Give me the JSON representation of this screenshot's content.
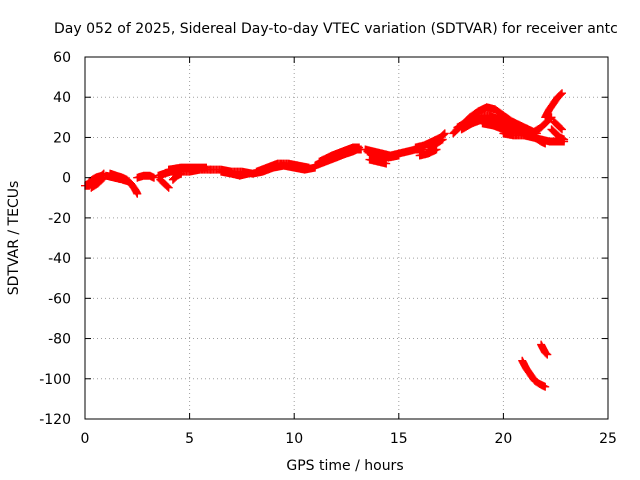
{
  "chart_data": {
    "type": "scatter",
    "title": "Day 052 of 2025, Sidereal Day-to-day VTEC variation (SDTVAR) for receiver antc",
    "xlabel": "GPS time / hours",
    "ylabel": "SDTVAR / TECUs",
    "xlim": [
      0,
      25
    ],
    "ylim": [
      -120,
      60
    ],
    "xticks": [
      0,
      5,
      10,
      15,
      20,
      25
    ],
    "yticks": [
      60,
      40,
      20,
      0,
      -20,
      -40,
      -60,
      -80,
      -100,
      -120
    ],
    "grid": true,
    "marker": "+",
    "series": [
      {
        "name": "SDTVAR",
        "color": "#ff0000",
        "segments": [
          [
            [
              0.0,
              -4
            ],
            [
              0.2,
              -4
            ],
            [
              0.4,
              -2
            ],
            [
              0.6,
              -1
            ],
            [
              0.8,
              1
            ],
            [
              0.9,
              2
            ]
          ],
          [
            [
              0.3,
              -5
            ],
            [
              0.6,
              -3
            ],
            [
              0.9,
              0
            ]
          ],
          [
            [
              0.2,
              -2
            ],
            [
              0.5,
              0
            ],
            [
              0.8,
              1
            ]
          ],
          [
            [
              1.2,
              2
            ],
            [
              1.5,
              1
            ],
            [
              1.8,
              0
            ],
            [
              2.0,
              -1
            ],
            [
              2.2,
              -3
            ],
            [
              2.4,
              -6
            ],
            [
              2.5,
              -8
            ]
          ],
          [
            [
              1.0,
              1
            ],
            [
              1.4,
              0
            ],
            [
              1.8,
              -1
            ],
            [
              2.1,
              -2
            ]
          ],
          [
            [
              2.5,
              0
            ],
            [
              2.8,
              1
            ],
            [
              3.1,
              1
            ],
            [
              3.3,
              0
            ]
          ],
          [
            [
              3.5,
              1
            ],
            [
              3.8,
              2
            ],
            [
              4.1,
              3
            ],
            [
              4.5,
              3
            ],
            [
              5.0,
              3
            ],
            [
              5.5,
              4
            ],
            [
              6.0,
              4
            ]
          ],
          [
            [
              3.6,
              -1
            ],
            [
              3.8,
              -3
            ],
            [
              4.0,
              -5
            ]
          ],
          [
            [
              4.0,
              4
            ],
            [
              4.6,
              5
            ],
            [
              5.2,
              5
            ],
            [
              5.8,
              5
            ]
          ],
          [
            [
              4.2,
              -1
            ],
            [
              4.4,
              1
            ],
            [
              4.6,
              2
            ]
          ],
          [
            [
              6.0,
              4
            ],
            [
              6.5,
              4
            ],
            [
              7.0,
              3
            ],
            [
              7.5,
              3
            ],
            [
              8.0,
              2
            ],
            [
              8.5,
              3
            ],
            [
              9.0,
              5
            ],
            [
              9.5,
              6
            ],
            [
              10.0,
              5
            ],
            [
              10.5,
              4
            ],
            [
              11.0,
              5
            ]
          ],
          [
            [
              6.5,
              3
            ],
            [
              7.0,
              2
            ],
            [
              7.4,
              1
            ],
            [
              7.8,
              2
            ]
          ],
          [
            [
              8.2,
              3
            ],
            [
              8.7,
              5
            ],
            [
              9.2,
              7
            ],
            [
              9.7,
              7
            ],
            [
              10.2,
              6
            ],
            [
              10.7,
              5
            ]
          ],
          [
            [
              11.0,
              6
            ],
            [
              11.5,
              8
            ],
            [
              12.0,
              10
            ],
            [
              12.5,
              12
            ],
            [
              12.8,
              13
            ],
            [
              13.0,
              14
            ],
            [
              13.2,
              14
            ]
          ],
          [
            [
              11.2,
              8
            ],
            [
              11.8,
              11
            ],
            [
              12.3,
              13
            ],
            [
              12.8,
              15
            ],
            [
              13.1,
              15
            ]
          ],
          [
            [
              13.4,
              14
            ],
            [
              13.8,
              13
            ],
            [
              14.2,
              12
            ],
            [
              14.6,
              11
            ],
            [
              15.0,
              12
            ],
            [
              15.4,
              13
            ],
            [
              15.8,
              14
            ],
            [
              16.2,
              14
            ]
          ],
          [
            [
              13.6,
              9
            ],
            [
              14.0,
              8
            ],
            [
              14.4,
              7
            ]
          ],
          [
            [
              13.5,
              13
            ],
            [
              14.0,
              11
            ],
            [
              14.5,
              10
            ],
            [
              15.0,
              11
            ]
          ],
          [
            [
              15.8,
              15
            ],
            [
              16.2,
              16
            ],
            [
              16.6,
              18
            ],
            [
              17.0,
              20
            ],
            [
              17.2,
              22
            ]
          ],
          [
            [
              16.0,
              11
            ],
            [
              16.4,
              12
            ],
            [
              16.8,
              14
            ]
          ],
          [
            [
              16.4,
              15
            ],
            [
              16.8,
              17
            ],
            [
              17.1,
              19
            ]
          ],
          [
            [
              17.6,
              22
            ],
            [
              18.0,
              26
            ],
            [
              18.4,
              30
            ],
            [
              18.8,
              33
            ],
            [
              19.2,
              35
            ],
            [
              19.6,
              34
            ],
            [
              20.0,
              31
            ],
            [
              20.4,
              28
            ],
            [
              20.8,
              26
            ],
            [
              21.2,
              24
            ],
            [
              21.6,
              22
            ]
          ],
          [
            [
              17.8,
              25
            ],
            [
              18.3,
              28
            ],
            [
              18.8,
              31
            ],
            [
              19.3,
              31
            ],
            [
              19.8,
              29
            ],
            [
              20.3,
              27
            ],
            [
              20.8,
              25
            ]
          ],
          [
            [
              18.0,
              24
            ],
            [
              18.5,
              27
            ],
            [
              19.0,
              29
            ],
            [
              19.5,
              28
            ],
            [
              20.0,
              26
            ],
            [
              20.5,
              24
            ],
            [
              21.0,
              22
            ]
          ],
          [
            [
              19.0,
              27
            ],
            [
              19.5,
              26
            ],
            [
              20.0,
              24
            ],
            [
              20.5,
              23
            ]
          ],
          [
            [
              20.0,
              22
            ],
            [
              20.5,
              21
            ],
            [
              21.0,
              21
            ],
            [
              21.5,
              21
            ]
          ],
          [
            [
              21.0,
              21
            ],
            [
              21.4,
              20
            ],
            [
              21.8,
              19
            ],
            [
              22.2,
              18
            ],
            [
              22.6,
              18
            ],
            [
              22.9,
              18
            ]
          ],
          [
            [
              21.5,
              20
            ],
            [
              21.8,
              18
            ],
            [
              22.0,
              17
            ]
          ],
          [
            [
              21.5,
              23
            ],
            [
              21.8,
              25
            ],
            [
              22.1,
              28
            ],
            [
              22.3,
              30
            ]
          ],
          [
            [
              22.0,
              30
            ],
            [
              22.2,
              34
            ],
            [
              22.4,
              37
            ],
            [
              22.6,
              40
            ],
            [
              22.8,
              42
            ]
          ],
          [
            [
              22.3,
              24
            ],
            [
              22.5,
              22
            ],
            [
              22.7,
              20
            ],
            [
              22.9,
              19
            ]
          ],
          [
            [
              22.4,
              28
            ],
            [
              22.6,
              26
            ],
            [
              22.8,
              24
            ]
          ],
          [
            [
              20.9,
              -91
            ],
            [
              21.1,
              -95
            ],
            [
              21.3,
              -98
            ],
            [
              21.5,
              -101
            ],
            [
              21.8,
              -103
            ],
            [
              22.0,
              -104
            ]
          ],
          [
            [
              21.8,
              -83
            ],
            [
              21.9,
              -85
            ],
            [
              22.0,
              -87
            ],
            [
              22.1,
              -88
            ]
          ]
        ]
      }
    ]
  }
}
